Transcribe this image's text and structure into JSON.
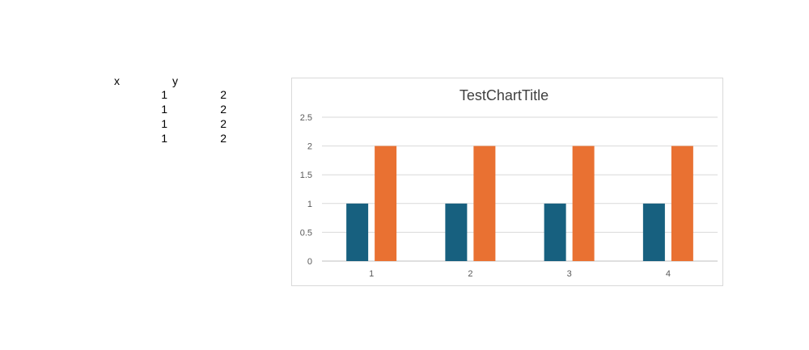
{
  "table": {
    "headers": [
      "x",
      "y"
    ],
    "rows": [
      [
        "1",
        "2"
      ],
      [
        "1",
        "2"
      ],
      [
        "1",
        "2"
      ],
      [
        "1",
        "2"
      ]
    ]
  },
  "chart_data": {
    "type": "bar",
    "title": "TestChartTitle",
    "categories": [
      "1",
      "2",
      "3",
      "4"
    ],
    "series": [
      {
        "values": [
          1,
          1,
          1,
          1
        ],
        "color": "#17607f"
      },
      {
        "values": [
          2,
          2,
          2,
          2
        ],
        "color": "#e97132"
      }
    ],
    "ylim": [
      0,
      2.5
    ],
    "yticks": [
      "0",
      "0.5",
      "1",
      "1.5",
      "2",
      "2.5"
    ],
    "grid": true,
    "legend": "none"
  }
}
